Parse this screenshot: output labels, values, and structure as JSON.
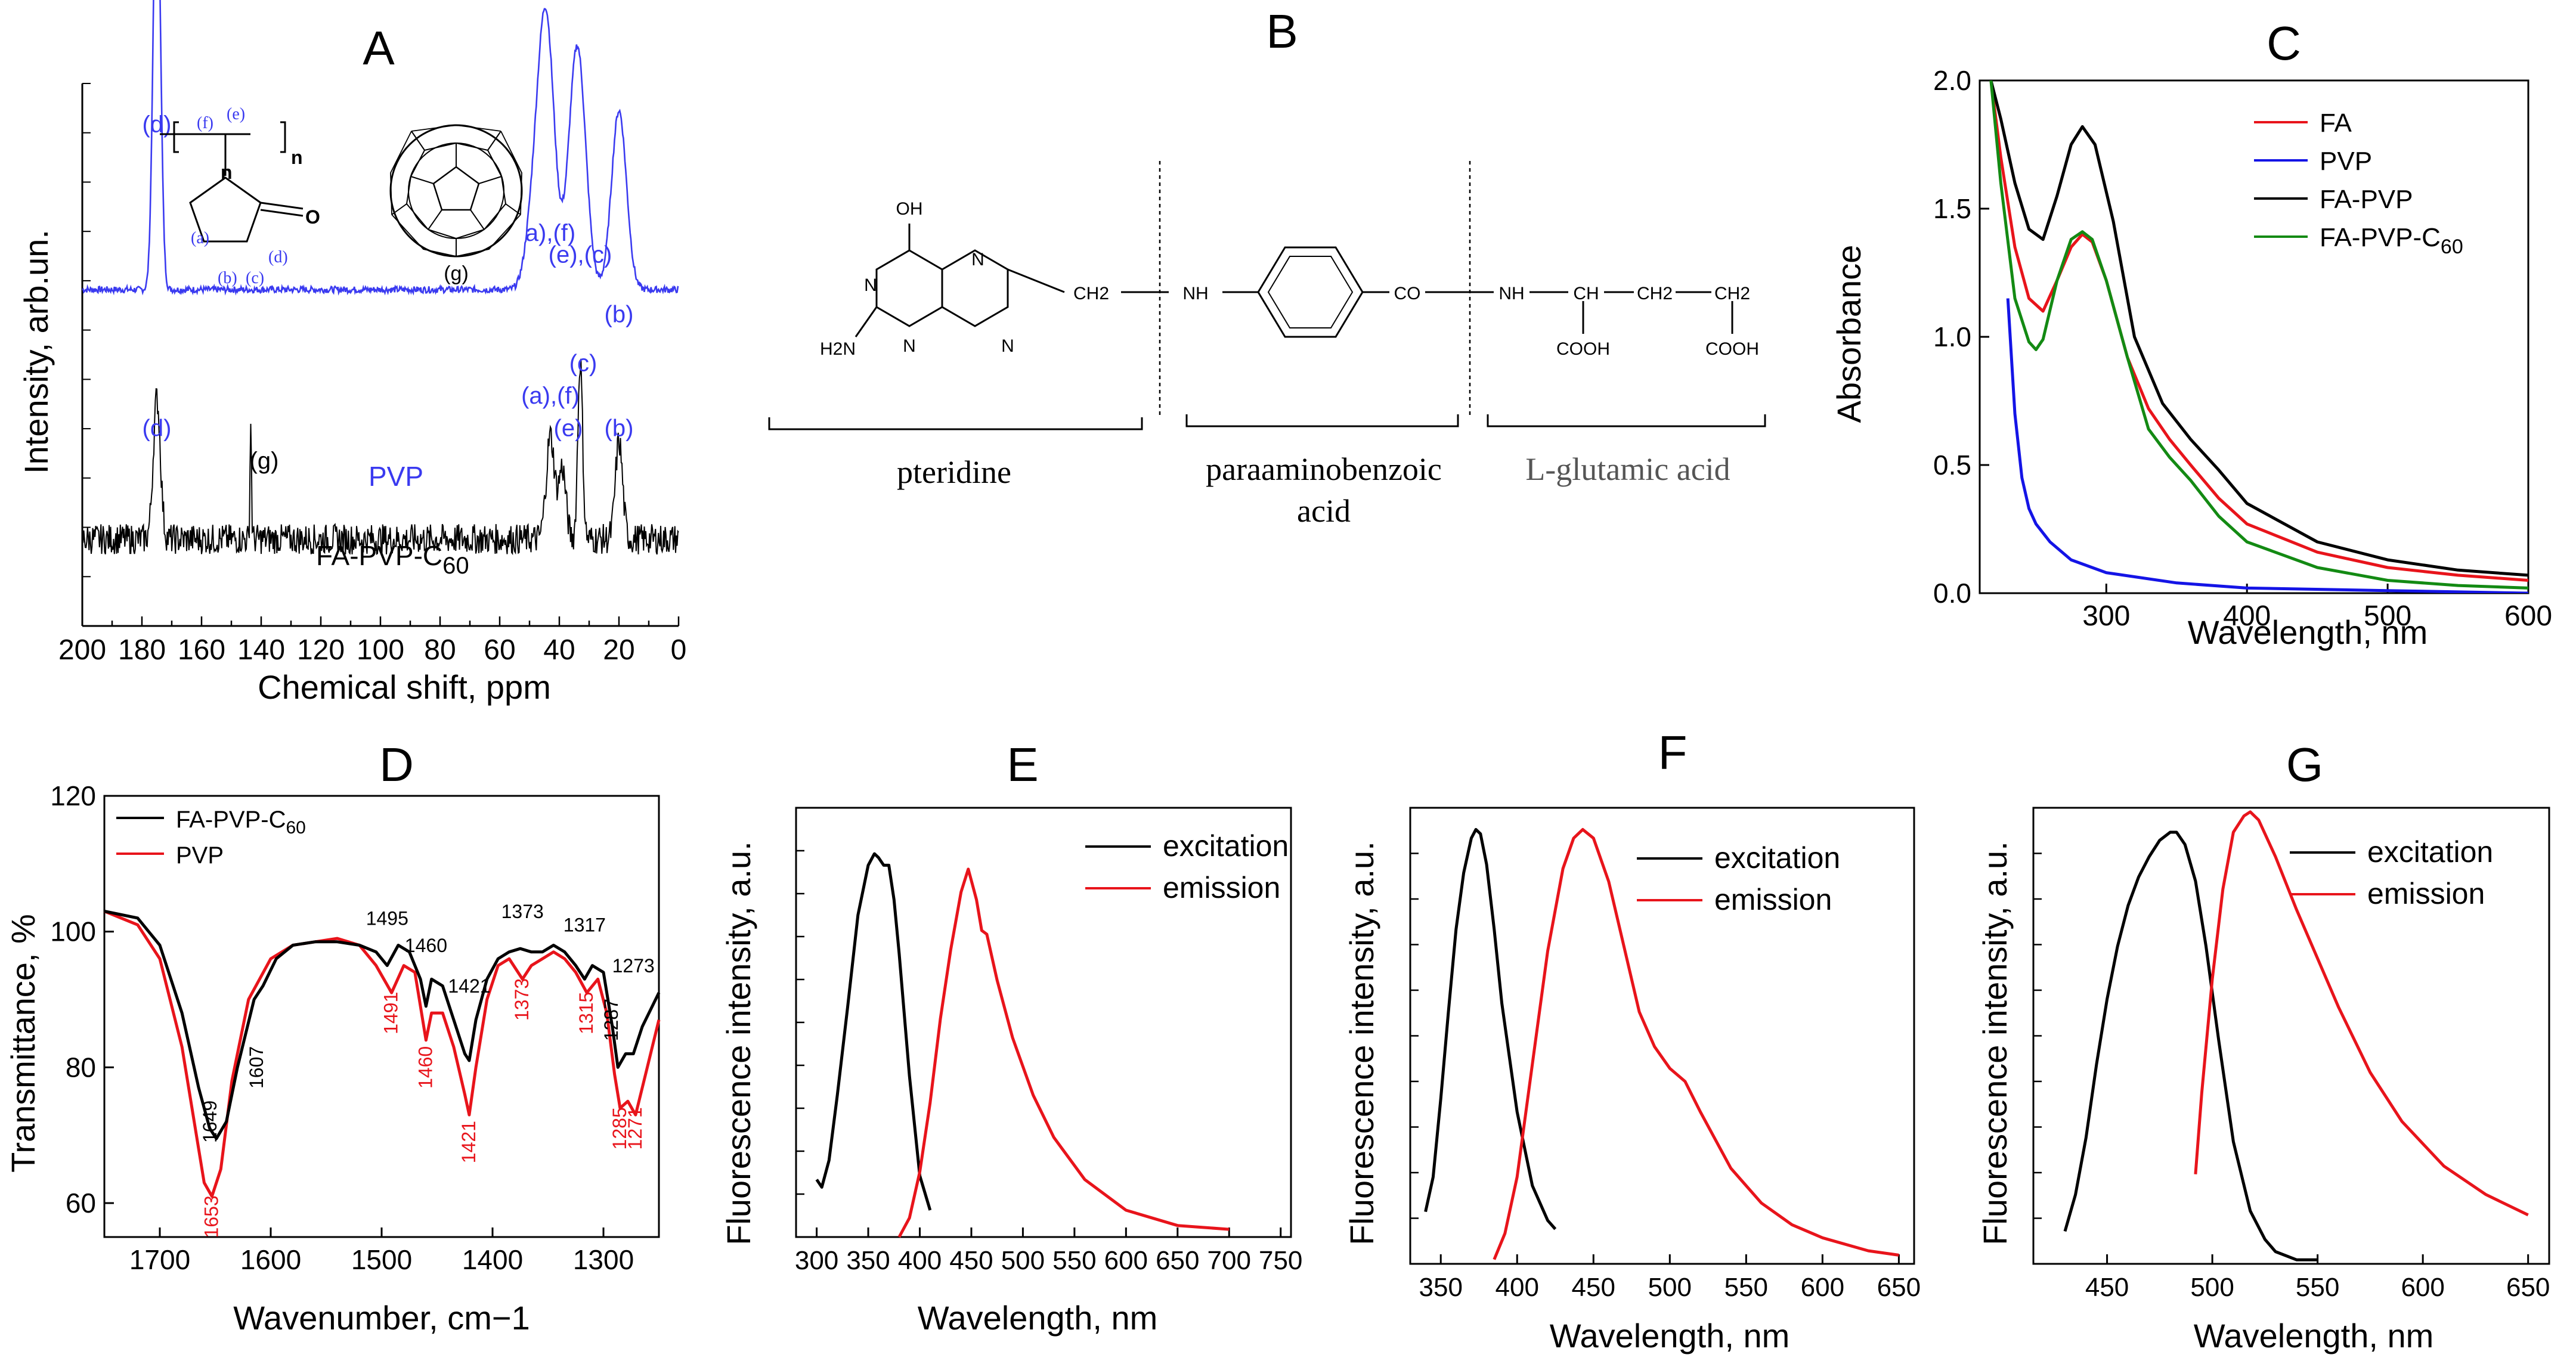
{
  "colors": {
    "black": "#000000",
    "red": "#e8141b",
    "blue": "#1414e6",
    "green": "#138a13",
    "pvp_blue": "#3a3af0"
  },
  "chart_data": [
    {
      "panel": "A",
      "type": "line",
      "title": "A",
      "xlabel": "Chemical shift, ppm",
      "ylabel": "Intensity, arb.un.",
      "xlim": [
        200,
        0
      ],
      "xticks": [
        200,
        180,
        160,
        140,
        120,
        100,
        80,
        60,
        40,
        20,
        0
      ],
      "series": [
        {
          "name": "PVP",
          "color": "#3a3af0",
          "baseline": 0.62,
          "noise": 0.006,
          "peaks": [
            [
              175,
              0.82,
              1.2
            ],
            [
              44.5,
              0.5,
              2.8
            ],
            [
              34,
              0.45,
              2.8
            ],
            [
              20,
              0.33,
              2.5
            ],
            [
              49,
              0.1,
              2.5
            ]
          ]
        },
        {
          "name": "FA-PVP-C60",
          "color": "#000000",
          "baseline": 0.16,
          "noise": 0.014,
          "peaks": [
            [
              175,
              0.26,
              1.2
            ],
            [
              143.5,
              0.22,
              0.25
            ],
            [
              43,
              0.19,
              1.4
            ],
            [
              39,
              0.13,
              1.2
            ],
            [
              33,
              0.33,
              0.8
            ],
            [
              20,
              0.18,
              1.2
            ]
          ]
        }
      ],
      "peak_labels": [
        {
          "text": "(d)",
          "x": 175,
          "y": 0.91,
          "color": "#3a3af0"
        },
        {
          "text": "a),(f)",
          "x": 43,
          "y": 0.71,
          "color": "#3a3af0"
        },
        {
          "text": "(e),(c)",
          "x": 33,
          "y": 0.67,
          "color": "#3a3af0"
        },
        {
          "text": "(b)",
          "x": 20,
          "y": 0.56,
          "color": "#3a3af0"
        },
        {
          "text": "(d)",
          "x": 175,
          "y": 0.35,
          "color": "#3a3af0"
        },
        {
          "text": "(a),(f)",
          "x": 43,
          "y": 0.41,
          "color": "#3a3af0"
        },
        {
          "text": "(e)",
          "x": 37,
          "y": 0.35,
          "color": "#3a3af0"
        },
        {
          "text": "(c)",
          "x": 32,
          "y": 0.47,
          "color": "#3a3af0"
        },
        {
          "text": "(b)",
          "x": 20,
          "y": 0.35,
          "color": "#3a3af0"
        },
        {
          "text": "(g)",
          "x": 139,
          "y": 0.29,
          "color": "#000000"
        }
      ],
      "series_labels": [
        "PVP",
        "FA-PVP-C60"
      ],
      "structure_labels": {
        "f": "(f)",
        "e": "(e)",
        "a": "(a)",
        "d": "(d)",
        "b": "(b)",
        "c": "(c)",
        "n": "n",
        "o": "O",
        "g": "(g)"
      }
    },
    {
      "panel": "B",
      "type": "diagram",
      "title": "B",
      "atoms": {
        "oh": "OH",
        "n": "N",
        "h2n": "H2N",
        "ch2": "CH2",
        "nh": "NH",
        "co": "CO",
        "ch": "CH",
        "cooh": "COOH"
      },
      "segments": [
        "pteridine",
        "paraaminobenzoic",
        "acid",
        "L-glutamic acid"
      ]
    },
    {
      "panel": "C",
      "type": "line",
      "title": "C",
      "xlabel": "Wavelength, nm",
      "ylabel": "Absorbance",
      "xlim": [
        210,
        600
      ],
      "ylim": [
        0,
        2.0
      ],
      "xticks": [
        300,
        400,
        500,
        600
      ],
      "yticks": [
        0.0,
        0.5,
        1.0,
        1.5,
        2.0
      ],
      "series": [
        {
          "name": "FA",
          "color": "#e8141b",
          "x": [
            218,
            225,
            235,
            245,
            255,
            265,
            275,
            283,
            290,
            300,
            315,
            330,
            345,
            360,
            380,
            400,
            450,
            500,
            550,
            600
          ],
          "y": [
            2.0,
            1.7,
            1.35,
            1.15,
            1.1,
            1.22,
            1.35,
            1.4,
            1.37,
            1.22,
            0.92,
            0.72,
            0.6,
            0.5,
            0.37,
            0.27,
            0.16,
            0.1,
            0.07,
            0.05
          ]
        },
        {
          "name": "PVP",
          "color": "#1414e6",
          "x": [
            230,
            235,
            240,
            245,
            250,
            260,
            275,
            300,
            350,
            400,
            500,
            600
          ],
          "y": [
            1.15,
            0.7,
            0.45,
            0.33,
            0.27,
            0.2,
            0.13,
            0.08,
            0.04,
            0.02,
            0.01,
            0.0
          ]
        },
        {
          "name": "FA-PVP",
          "color": "#000000",
          "x": [
            218,
            225,
            235,
            245,
            255,
            265,
            275,
            283,
            292,
            305,
            320,
            340,
            360,
            380,
            400,
            450,
            500,
            550,
            600
          ],
          "y": [
            2.0,
            1.85,
            1.6,
            1.42,
            1.38,
            1.55,
            1.75,
            1.82,
            1.75,
            1.45,
            1.0,
            0.74,
            0.6,
            0.48,
            0.35,
            0.2,
            0.13,
            0.09,
            0.07
          ]
        },
        {
          "name": "FA-PVP-C60",
          "color": "#138a13",
          "x": [
            218,
            225,
            235,
            245,
            250,
            255,
            265,
            275,
            283,
            290,
            300,
            315,
            330,
            345,
            360,
            380,
            400,
            450,
            500,
            550,
            600
          ],
          "y": [
            2.0,
            1.6,
            1.15,
            0.98,
            0.95,
            0.99,
            1.22,
            1.38,
            1.41,
            1.38,
            1.22,
            0.92,
            0.64,
            0.53,
            0.44,
            0.3,
            0.2,
            0.1,
            0.05,
            0.03,
            0.02
          ]
        }
      ],
      "legend": [
        "FA",
        "PVP",
        "FA-PVP",
        "FA-PVP-C60"
      ]
    },
    {
      "panel": "D",
      "type": "line",
      "title": "D",
      "xlabel": "Wavenumber, cm−1",
      "ylabel": "Transmittance, %",
      "xlim": [
        1750,
        1250
      ],
      "ylim": [
        55,
        120
      ],
      "xticks": [
        1700,
        1600,
        1500,
        1400,
        1300
      ],
      "yticks": [
        60,
        80,
        100,
        120
      ],
      "series": [
        {
          "name": "FA-PVP-C60",
          "color": "#000000",
          "x": [
            1750,
            1720,
            1700,
            1680,
            1665,
            1655,
            1649,
            1640,
            1630,
            1615,
            1607,
            1595,
            1580,
            1560,
            1540,
            1520,
            1505,
            1495,
            1485,
            1475,
            1465,
            1460,
            1455,
            1445,
            1435,
            1425,
            1421,
            1415,
            1405,
            1395,
            1385,
            1375,
            1365,
            1355,
            1345,
            1335,
            1325,
            1317,
            1310,
            1300,
            1292,
            1287,
            1280,
            1273,
            1265,
            1250
          ],
          "y": [
            103,
            102,
            98,
            88,
            77,
            71,
            69.5,
            72,
            80,
            90,
            92,
            96,
            98,
            98.5,
            98.5,
            98,
            97,
            95,
            98,
            97,
            93,
            89,
            93,
            92,
            87,
            82,
            81,
            87,
            93,
            96,
            97,
            97.5,
            97,
            97,
            98,
            97,
            95,
            93,
            95,
            94,
            86,
            80,
            82,
            82,
            86,
            91
          ]
        },
        {
          "name": "PVP",
          "color": "#e8141b",
          "x": [
            1750,
            1720,
            1700,
            1680,
            1665,
            1660,
            1653,
            1645,
            1635,
            1620,
            1600,
            1580,
            1560,
            1540,
            1520,
            1505,
            1491,
            1480,
            1470,
            1465,
            1460,
            1455,
            1445,
            1435,
            1425,
            1421,
            1415,
            1405,
            1395,
            1385,
            1373,
            1365,
            1355,
            1345,
            1335,
            1325,
            1315,
            1305,
            1297,
            1290,
            1285,
            1278,
            1271,
            1262,
            1250
          ],
          "y": [
            103,
            101,
            96,
            83,
            68,
            63,
            61,
            65,
            78,
            90,
            96,
            98,
            98.5,
            99,
            98,
            95,
            91,
            95,
            94,
            89,
            84,
            88,
            88,
            83,
            76,
            73,
            80,
            90,
            95,
            96,
            93,
            95,
            96,
            97,
            96,
            94,
            91,
            93,
            88,
            79,
            74,
            75,
            73,
            79,
            87
          ]
        }
      ],
      "legend": [
        "FA-PVP-C60",
        "PVP"
      ],
      "annotations_black": [
        {
          "text": "1495",
          "x": 1495,
          "y": 101
        },
        {
          "text": "1460",
          "x": 1460,
          "y": 97
        },
        {
          "text": "1421",
          "x": 1421,
          "y": 91
        },
        {
          "text": "1373",
          "x": 1373,
          "y": 102
        },
        {
          "text": "1317",
          "x": 1317,
          "y": 100
        },
        {
          "text": "1287",
          "x": 1287,
          "y": 87
        },
        {
          "text": "1273",
          "x": 1273,
          "y": 94
        },
        {
          "text": "1649",
          "x": 1649,
          "y": 72
        },
        {
          "text": "1607",
          "x": 1607,
          "y": 80
        }
      ],
      "annotations_red": [
        {
          "text": "1491",
          "x": 1491,
          "y": 88
        },
        {
          "text": "1460",
          "x": 1460,
          "y": 80
        },
        {
          "text": "1421",
          "x": 1421,
          "y": 69
        },
        {
          "text": "1373",
          "x": 1373,
          "y": 90
        },
        {
          "text": "1315",
          "x": 1315,
          "y": 88
        },
        {
          "text": "1285",
          "x": 1285,
          "y": 71
        },
        {
          "text": "1271",
          "x": 1271,
          "y": 71
        },
        {
          "text": "1653",
          "x": 1653,
          "y": 58
        }
      ]
    },
    {
      "panel": "E",
      "type": "line",
      "title": "E",
      "xlabel": "Wavelength, nm",
      "ylabel": "Fluorescence intensity, a.u.",
      "xlim": [
        280,
        760
      ],
      "ylim": [
        0,
        1.12
      ],
      "xticks": [
        300,
        350,
        400,
        450,
        500,
        550,
        600,
        650,
        700,
        750
      ],
      "series": [
        {
          "name": "excitation",
          "color": "#000000",
          "x": [
            300,
            305,
            312,
            320,
            330,
            340,
            350,
            356,
            360,
            365,
            370,
            375,
            380,
            390,
            400,
            410
          ],
          "y": [
            0.15,
            0.13,
            0.2,
            0.37,
            0.6,
            0.84,
            0.97,
            1.0,
            0.99,
            0.97,
            0.97,
            0.88,
            0.74,
            0.42,
            0.16,
            0.07
          ]
        },
        {
          "name": "emission",
          "color": "#e8141b",
          "x": [
            380,
            390,
            400,
            410,
            420,
            430,
            440,
            447,
            450,
            455,
            460,
            465,
            475,
            490,
            510,
            530,
            560,
            600,
            650,
            700
          ],
          "y": [
            0.0,
            0.05,
            0.17,
            0.35,
            0.57,
            0.75,
            0.9,
            0.96,
            0.93,
            0.88,
            0.8,
            0.79,
            0.67,
            0.52,
            0.37,
            0.26,
            0.15,
            0.07,
            0.03,
            0.02
          ]
        }
      ],
      "legend": [
        "excitation",
        "emission"
      ]
    },
    {
      "panel": "F",
      "type": "line",
      "title": "F",
      "xlabel": "Wavelength, nm",
      "ylabel": "Fluorescence intensity, a.u.",
      "xlim": [
        330,
        660
      ],
      "ylim": [
        0,
        1.05
      ],
      "xticks": [
        350,
        400,
        450,
        500,
        550,
        600,
        650
      ],
      "series": [
        {
          "name": "excitation",
          "color": "#000000",
          "x": [
            340,
            345,
            350,
            355,
            360,
            365,
            370,
            373,
            376,
            380,
            385,
            390,
            400,
            410,
            420,
            425
          ],
          "y": [
            0.12,
            0.2,
            0.38,
            0.58,
            0.77,
            0.9,
            0.98,
            1.0,
            0.99,
            0.92,
            0.77,
            0.6,
            0.35,
            0.18,
            0.1,
            0.08
          ]
        },
        {
          "name": "emission",
          "color": "#e8141b",
          "x": [
            385,
            392,
            400,
            410,
            420,
            430,
            437,
            443,
            450,
            460,
            470,
            480,
            490,
            500,
            510,
            520,
            540,
            560,
            580,
            600,
            630,
            650
          ],
          "y": [
            0.01,
            0.07,
            0.2,
            0.46,
            0.72,
            0.91,
            0.98,
            1.0,
            0.98,
            0.88,
            0.73,
            0.58,
            0.5,
            0.45,
            0.42,
            0.35,
            0.22,
            0.14,
            0.09,
            0.06,
            0.03,
            0.02
          ]
        }
      ],
      "legend": [
        "excitation",
        "emission"
      ]
    },
    {
      "panel": "G",
      "type": "line",
      "title": "G",
      "xlabel": "Wavelength, nm",
      "ylabel": "Fluorescence intensity, a.u.",
      "xlim": [
        415,
        660
      ],
      "ylim": [
        0,
        1.12
      ],
      "xticks": [
        450,
        500,
        550,
        600,
        650
      ],
      "series": [
        {
          "name": "excitation",
          "color": "#000000",
          "x": [
            430,
            435,
            440,
            445,
            450,
            455,
            460,
            465,
            470,
            475,
            480,
            483,
            487,
            492,
            497,
            503,
            510,
            518,
            525,
            530,
            540,
            550
          ],
          "y": [
            0.08,
            0.17,
            0.31,
            0.49,
            0.65,
            0.78,
            0.88,
            0.95,
            1.0,
            1.04,
            1.06,
            1.06,
            1.03,
            0.94,
            0.78,
            0.55,
            0.3,
            0.13,
            0.06,
            0.03,
            0.01,
            0.01
          ]
        },
        {
          "name": "emission",
          "color": "#e8141b",
          "x": [
            492,
            495,
            500,
            505,
            510,
            515,
            518,
            522,
            530,
            540,
            550,
            560,
            575,
            590,
            610,
            630,
            650
          ],
          "y": [
            0.22,
            0.42,
            0.7,
            0.92,
            1.06,
            1.1,
            1.11,
            1.09,
            1.0,
            0.87,
            0.75,
            0.63,
            0.47,
            0.35,
            0.24,
            0.17,
            0.12
          ]
        }
      ],
      "legend": [
        "excitation",
        "emission"
      ]
    }
  ]
}
